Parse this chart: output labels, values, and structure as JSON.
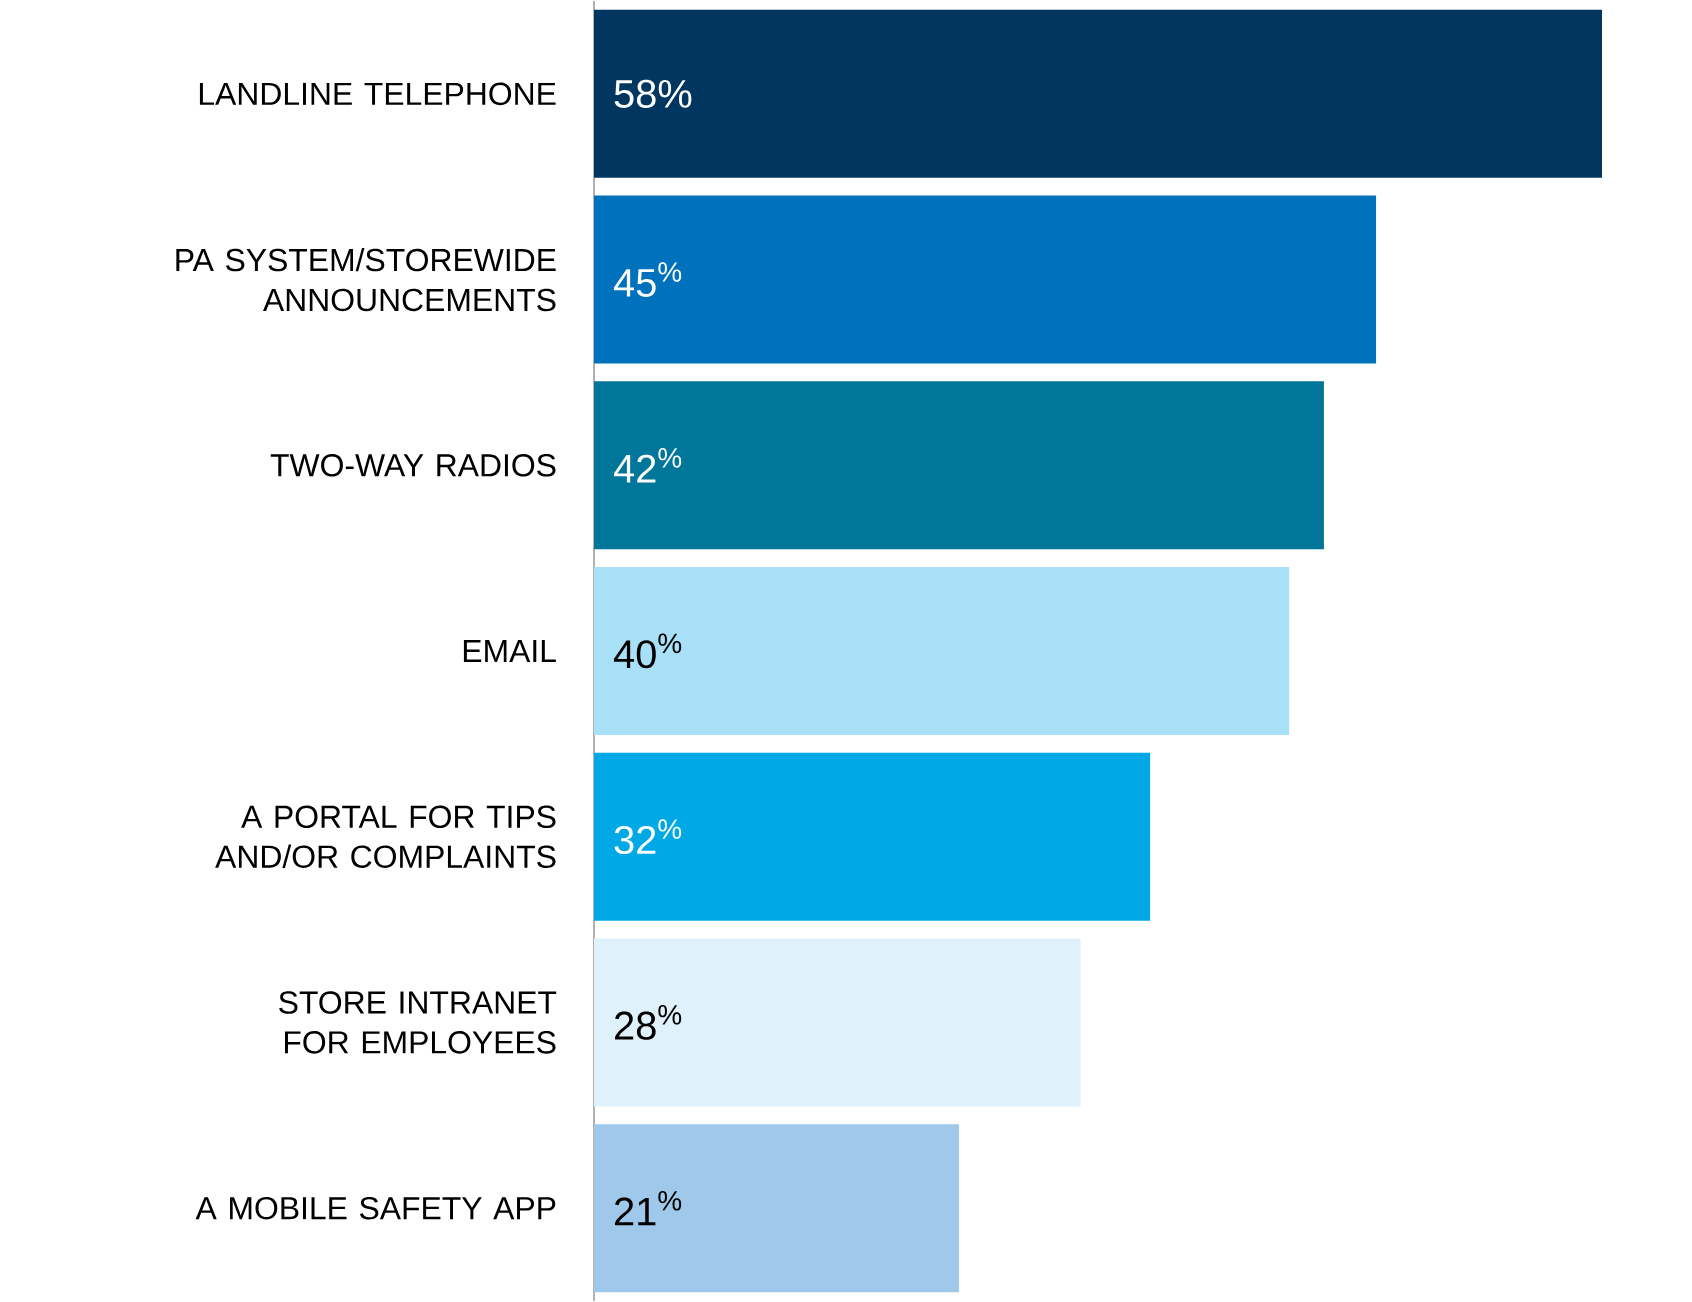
{
  "chart_data": {
    "type": "bar",
    "orientation": "horizontal",
    "categories": [
      "LANDLINE TELEPHONE",
      "PA SYSTEM/STOREWIDE ANNOUNCEMENTS",
      "TWO-WAY RADIOS",
      "EMAIL",
      "A PORTAL FOR TIPS AND/OR COMPLAINTS",
      "STORE INTRANET FOR EMPLOYEES",
      "A MOBILE SAFETY APP"
    ],
    "values": [
      58,
      45,
      42,
      40,
      32,
      28,
      21
    ],
    "colors": [
      "#003660",
      "#0071bc",
      "#00769a",
      "#a8e0f8",
      "#00a9e6",
      "#dff2fb",
      "#a0c8ea"
    ],
    "value_labels": [
      "58%",
      "45$^{%}$",
      "42$^{%}$",
      "40$^{%}$",
      "32$^{%}$",
      "28$^{%}$",
      "21$^{%}$"
    ]
  }
}
